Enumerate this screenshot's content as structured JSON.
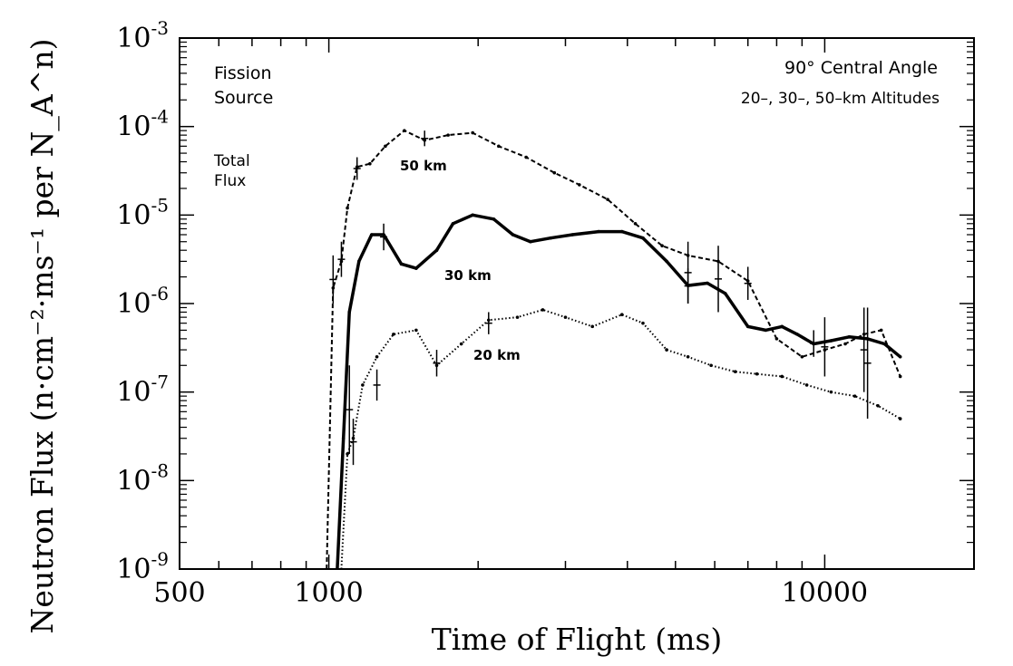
{
  "chart_data": {
    "type": "line",
    "title": "",
    "xlabel": "Time of Flight (ms)",
    "ylabel": "Neutron Flux (n·cm⁻²·ms⁻¹ per N_A^n)",
    "x_scale": "log",
    "y_scale": "log",
    "xlim": [
      500,
      20000
    ],
    "ylim": [
      1e-09,
      0.001
    ],
    "x_tick_labels": [
      {
        "value": 500,
        "label": "500"
      },
      {
        "value": 1000,
        "label": "1000"
      },
      {
        "value": 10000,
        "label": "10000"
      }
    ],
    "y_tick_labels": [
      {
        "value": 1e-09,
        "base": "10",
        "exp": "-9"
      },
      {
        "value": 1e-08,
        "base": "10",
        "exp": "-8"
      },
      {
        "value": 1e-07,
        "base": "10",
        "exp": "-7"
      },
      {
        "value": 1e-06,
        "base": "10",
        "exp": "-6"
      },
      {
        "value": 1e-05,
        "base": "10",
        "exp": "-5"
      },
      {
        "value": 0.0001,
        "base": "10",
        "exp": "-4"
      },
      {
        "value": 0.001,
        "base": "10",
        "exp": "-3"
      }
    ],
    "annotations": {
      "source_line1": "Fission",
      "source_line2": "Source",
      "quantity_line1": "Total",
      "quantity_line2": "Flux",
      "angle": "90° Central Angle",
      "altitudes": "20–, 30–, 50–km Altitudes"
    },
    "series": [
      {
        "name": "50 km",
        "style": "dashed",
        "x": [
          990,
          1020,
          1060,
          1090,
          1140,
          1210,
          1300,
          1420,
          1560,
          1740,
          1950,
          2200,
          2500,
          2850,
          3200,
          3650,
          4150,
          4700,
          5300,
          6100,
          7000,
          8000,
          9000,
          10000,
          11000,
          12000,
          13000,
          14200
        ],
        "y": [
          1e-09,
          1.5e-06,
          3e-06,
          1.2e-05,
          3.5e-05,
          3.8e-05,
          6e-05,
          9e-05,
          7e-05,
          8e-05,
          8.5e-05,
          6e-05,
          4.5e-05,
          3e-05,
          2.2e-05,
          1.5e-05,
          8e-06,
          4.5e-06,
          3.5e-06,
          3e-06,
          1.8e-06,
          4e-07,
          2.5e-07,
          3e-07,
          3.5e-07,
          4.5e-07,
          5e-07,
          1.5e-07
        ],
        "error_bars": [
          {
            "x": 1020,
            "lo": 1e-06,
            "hi": 3.5e-06
          },
          {
            "x": 1060,
            "lo": 2e-06,
            "hi": 5e-06
          },
          {
            "x": 1140,
            "lo": 2.5e-05,
            "hi": 4.5e-05
          },
          {
            "x": 1560,
            "lo": 6e-05,
            "hi": 9e-05
          },
          {
            "x": 5300,
            "lo": 1e-06,
            "hi": 5e-06
          },
          {
            "x": 6100,
            "lo": 8e-07,
            "hi": 4.5e-06
          },
          {
            "x": 7000,
            "lo": 1.1e-06,
            "hi": 2.6e-06
          },
          {
            "x": 10000,
            "lo": 1.5e-07,
            "hi": 7e-07
          },
          {
            "x": 12000,
            "lo": 1e-07,
            "hi": 9e-07
          }
        ]
      },
      {
        "name": "30 km",
        "style": "solid",
        "x": [
          1040,
          1070,
          1100,
          1150,
          1220,
          1290,
          1400,
          1500,
          1650,
          1780,
          1950,
          2150,
          2350,
          2550,
          2800,
          3100,
          3500,
          3900,
          4300,
          4800,
          5300,
          5800,
          6300,
          7000,
          7600,
          8200,
          8800,
          9500,
          10300,
          11200,
          12200,
          13200,
          14200
        ],
        "y": [
          1e-09,
          3e-08,
          8e-07,
          3e-06,
          6e-06,
          6e-06,
          2.8e-06,
          2.5e-06,
          4e-06,
          8e-06,
          1e-05,
          9e-06,
          6e-06,
          5e-06,
          5.5e-06,
          6e-06,
          6.5e-06,
          6.5e-06,
          5.5e-06,
          3e-06,
          1.6e-06,
          1.7e-06,
          1.3e-06,
          5.5e-07,
          5e-07,
          5.5e-07,
          4.5e-07,
          3.5e-07,
          3.8e-07,
          4.2e-07,
          4e-07,
          3.5e-07,
          2.5e-07
        ],
        "error_bars": [
          {
            "x": 1100,
            "lo": 2e-08,
            "hi": 2e-07
          },
          {
            "x": 1290,
            "lo": 4e-06,
            "hi": 8e-06
          },
          {
            "x": 5300,
            "lo": 1e-06,
            "hi": 2.5e-06
          },
          {
            "x": 9500,
            "lo": 2.5e-07,
            "hi": 5e-07
          },
          {
            "x": 12200,
            "lo": 5e-08,
            "hi": 9e-07
          }
        ]
      },
      {
        "name": "20 km",
        "style": "dotted",
        "x": [
          1060,
          1090,
          1120,
          1170,
          1250,
          1350,
          1500,
          1650,
          1850,
          2100,
          2400,
          2700,
          3000,
          3400,
          3900,
          4300,
          4800,
          5300,
          5900,
          6600,
          7300,
          8200,
          9200,
          10300,
          11500,
          12800,
          14200
        ],
        "y": [
          1e-09,
          2e-08,
          3e-08,
          1.2e-07,
          2.5e-07,
          4.5e-07,
          5e-07,
          2e-07,
          3.5e-07,
          6.5e-07,
          7e-07,
          8.5e-07,
          7e-07,
          5.5e-07,
          7.5e-07,
          6e-07,
          3e-07,
          2.5e-07,
          2e-07,
          1.7e-07,
          1.6e-07,
          1.5e-07,
          1.2e-07,
          1e-07,
          9e-08,
          7e-08,
          5e-08
        ],
        "error_bars": [
          {
            "x": 1120,
            "lo": 1.5e-08,
            "hi": 5e-08
          },
          {
            "x": 1250,
            "lo": 8e-08,
            "hi": 1.8e-07
          },
          {
            "x": 1650,
            "lo": 1.5e-07,
            "hi": 3e-07
          },
          {
            "x": 2100,
            "lo": 4.5e-07,
            "hi": 8e-07
          }
        ]
      }
    ]
  }
}
